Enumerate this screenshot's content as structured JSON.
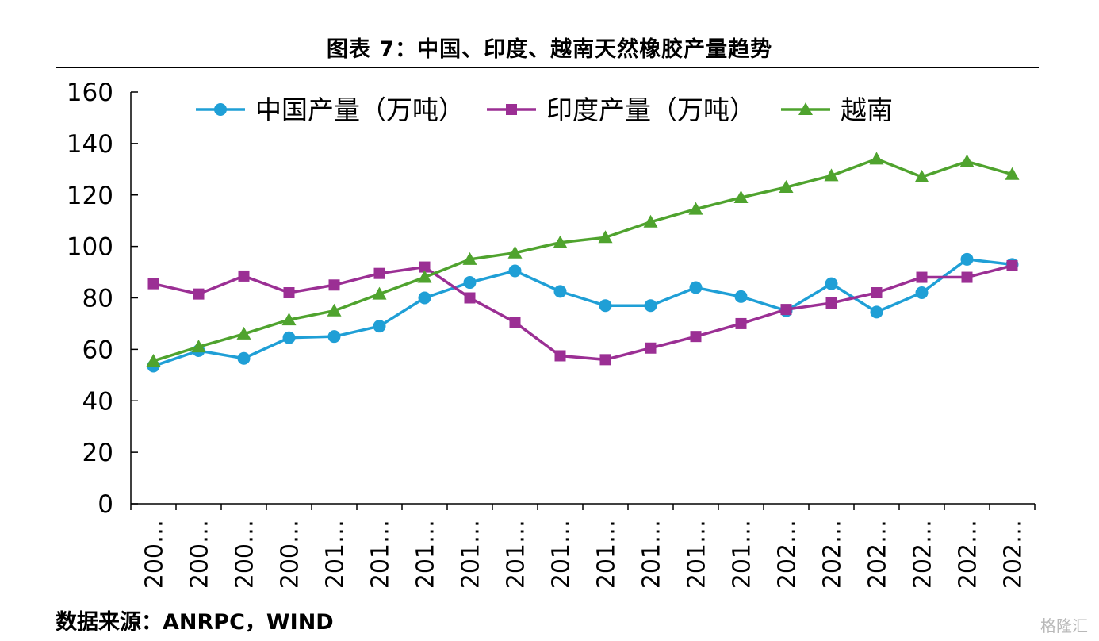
{
  "title": "图表 7：中国、印度、越南天然橡胶产量趋势",
  "source": "数据来源：ANRPC，WIND",
  "watermark": "格隆汇",
  "chart_data": {
    "type": "line",
    "ylim": [
      0,
      160
    ],
    "yticks": [
      0,
      20,
      40,
      60,
      80,
      100,
      120,
      140,
      160
    ],
    "legend_position": "top",
    "grid": false,
    "categories": [
      "200…",
      "200…",
      "200…",
      "200…",
      "201…",
      "201…",
      "201…",
      "201…",
      "201…",
      "201…",
      "201…",
      "201…",
      "201…",
      "201…",
      "202…",
      "202…",
      "202…",
      "202…",
      "202…",
      "202…"
    ],
    "series": [
      {
        "name": "中国产量（万吨）",
        "color": "#1f9fd6",
        "marker": "circle",
        "values": [
          53.5,
          59.5,
          56.5,
          64.5,
          65,
          69,
          80,
          86,
          90.5,
          82.5,
          77,
          77,
          84,
          80.5,
          75,
          85.5,
          74.5,
          82,
          95,
          93
        ]
      },
      {
        "name": "印度产量（万吨）",
        "color": "#9b2f94",
        "marker": "square",
        "values": [
          85.5,
          81.5,
          88.5,
          82,
          85,
          89.5,
          92,
          80,
          70.5,
          57.5,
          56,
          60.5,
          65,
          70,
          75.5,
          78,
          82,
          88,
          88,
          92.5
        ]
      },
      {
        "name": "越南",
        "color": "#4fa32e",
        "marker": "triangle",
        "values": [
          55.5,
          61,
          66,
          71.5,
          75,
          81.5,
          88,
          95,
          97.5,
          101.5,
          103.5,
          109.5,
          114.5,
          119,
          123,
          127.5,
          134,
          127,
          133,
          128
        ]
      }
    ]
  }
}
